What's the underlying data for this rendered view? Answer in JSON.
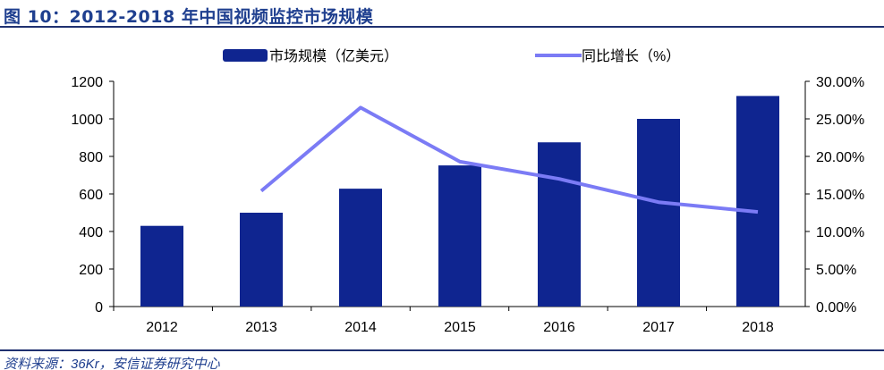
{
  "title": "图 10：2012-2018 年中国视频监控市场规模",
  "source": "资料来源：36Kr，安信证券研究中心",
  "chart_data": {
    "type": "bar+line",
    "categories": [
      "2012",
      "2013",
      "2014",
      "2015",
      "2016",
      "2017",
      "2018"
    ],
    "series": [
      {
        "name": "市场规模（亿美元）",
        "type": "bar",
        "axis": "left",
        "color": "#0f2590",
        "values": [
          430,
          500,
          628,
          752,
          875,
          1000,
          1122
        ]
      },
      {
        "name": "同比增长（%）",
        "type": "line",
        "axis": "right",
        "color": "#7b7bf5",
        "values": [
          null,
          15.4,
          26.5,
          19.3,
          17.0,
          13.9,
          12.6
        ]
      }
    ],
    "left_axis": {
      "ylim": [
        0,
        1200
      ],
      "ticks": [
        "0",
        "200",
        "400",
        "600",
        "800",
        "1000",
        "1200"
      ]
    },
    "right_axis": {
      "ylim": [
        0,
        30
      ],
      "ticks": [
        "0.00%",
        "5.00%",
        "10.00%",
        "15.00%",
        "20.00%",
        "25.00%",
        "30.00%"
      ]
    },
    "grid": false,
    "legend": "top"
  }
}
